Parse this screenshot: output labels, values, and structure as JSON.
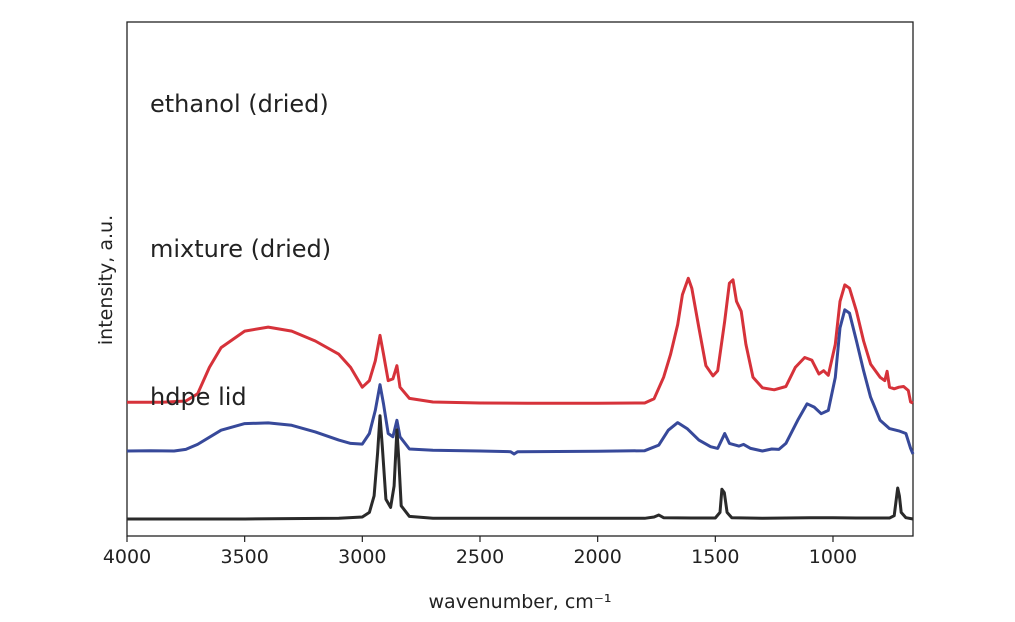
{
  "chart_data": {
    "type": "line",
    "xlabel": "wavenumber, cm⁻¹",
    "ylabel": "intensity, a.u.",
    "xlim": [
      4000,
      660
    ],
    "ylim": [
      0,
      1
    ],
    "xticks": [
      "4000",
      "3500",
      "3000",
      "2500",
      "2000",
      "1500",
      "1000"
    ],
    "grid": false,
    "y_ticks_shown": false,
    "series": [
      {
        "name": "ethanol (dried)",
        "color": "#d6323a",
        "points": [
          [
            4000,
            0.624
          ],
          [
            3850,
            0.624
          ],
          [
            3750,
            0.628
          ],
          [
            3700,
            0.65
          ],
          [
            3650,
            0.73
          ],
          [
            3600,
            0.79
          ],
          [
            3500,
            0.84
          ],
          [
            3400,
            0.852
          ],
          [
            3300,
            0.84
          ],
          [
            3200,
            0.81
          ],
          [
            3100,
            0.77
          ],
          [
            3050,
            0.73
          ],
          [
            3000,
            0.67
          ],
          [
            2970,
            0.69
          ],
          [
            2945,
            0.75
          ],
          [
            2925,
            0.827
          ],
          [
            2910,
            0.77
          ],
          [
            2890,
            0.69
          ],
          [
            2870,
            0.695
          ],
          [
            2853,
            0.735
          ],
          [
            2840,
            0.67
          ],
          [
            2800,
            0.636
          ],
          [
            2700,
            0.625
          ],
          [
            2500,
            0.622
          ],
          [
            2300,
            0.621
          ],
          [
            2000,
            0.621
          ],
          [
            1800,
            0.622
          ],
          [
            1760,
            0.635
          ],
          [
            1720,
            0.7
          ],
          [
            1690,
            0.77
          ],
          [
            1660,
            0.86
          ],
          [
            1640,
            0.95
          ],
          [
            1615,
            1.0
          ],
          [
            1600,
            0.97
          ],
          [
            1570,
            0.85
          ],
          [
            1540,
            0.735
          ],
          [
            1510,
            0.704
          ],
          [
            1490,
            0.72
          ],
          [
            1460,
            0.87
          ],
          [
            1440,
            0.985
          ],
          [
            1425,
            0.995
          ],
          [
            1410,
            0.93
          ],
          [
            1390,
            0.9
          ],
          [
            1370,
            0.8
          ],
          [
            1340,
            0.7
          ],
          [
            1300,
            0.668
          ],
          [
            1250,
            0.662
          ],
          [
            1200,
            0.672
          ],
          [
            1160,
            0.73
          ],
          [
            1120,
            0.76
          ],
          [
            1090,
            0.752
          ],
          [
            1060,
            0.71
          ],
          [
            1040,
            0.72
          ],
          [
            1020,
            0.706
          ],
          [
            990,
            0.8
          ],
          [
            970,
            0.93
          ],
          [
            950,
            0.98
          ],
          [
            930,
            0.97
          ],
          [
            900,
            0.9
          ],
          [
            870,
            0.81
          ],
          [
            840,
            0.74
          ],
          [
            800,
            0.7
          ],
          [
            780,
            0.69
          ],
          [
            770,
            0.718
          ],
          [
            760,
            0.67
          ],
          [
            740,
            0.665
          ],
          [
            720,
            0.67
          ],
          [
            700,
            0.672
          ],
          [
            680,
            0.66
          ],
          [
            670,
            0.625
          ],
          [
            660,
            0.622
          ]
        ]
      },
      {
        "name": "mixture (dried)",
        "color": "#37499a",
        "points": [
          [
            4000,
            0.277
          ],
          [
            3900,
            0.278
          ],
          [
            3800,
            0.277
          ],
          [
            3750,
            0.282
          ],
          [
            3700,
            0.297
          ],
          [
            3600,
            0.34
          ],
          [
            3500,
            0.36
          ],
          [
            3400,
            0.362
          ],
          [
            3300,
            0.355
          ],
          [
            3200,
            0.335
          ],
          [
            3100,
            0.31
          ],
          [
            3050,
            0.3
          ],
          [
            3000,
            0.298
          ],
          [
            2970,
            0.33
          ],
          [
            2945,
            0.4
          ],
          [
            2925,
            0.478
          ],
          [
            2910,
            0.42
          ],
          [
            2890,
            0.33
          ],
          [
            2870,
            0.32
          ],
          [
            2853,
            0.37
          ],
          [
            2840,
            0.32
          ],
          [
            2800,
            0.283
          ],
          [
            2700,
            0.279
          ],
          [
            2500,
            0.277
          ],
          [
            2370,
            0.275
          ],
          [
            2355,
            0.268
          ],
          [
            2340,
            0.275
          ],
          [
            2000,
            0.276
          ],
          [
            1800,
            0.278
          ],
          [
            1740,
            0.295
          ],
          [
            1700,
            0.34
          ],
          [
            1660,
            0.363
          ],
          [
            1620,
            0.345
          ],
          [
            1570,
            0.31
          ],
          [
            1520,
            0.29
          ],
          [
            1490,
            0.285
          ],
          [
            1470,
            0.315
          ],
          [
            1460,
            0.33
          ],
          [
            1440,
            0.3
          ],
          [
            1400,
            0.292
          ],
          [
            1380,
            0.297
          ],
          [
            1350,
            0.285
          ],
          [
            1300,
            0.277
          ],
          [
            1260,
            0.283
          ],
          [
            1230,
            0.282
          ],
          [
            1200,
            0.3
          ],
          [
            1150,
            0.37
          ],
          [
            1110,
            0.42
          ],
          [
            1080,
            0.41
          ],
          [
            1050,
            0.39
          ],
          [
            1020,
            0.4
          ],
          [
            990,
            0.5
          ],
          [
            970,
            0.65
          ],
          [
            950,
            0.705
          ],
          [
            930,
            0.695
          ],
          [
            900,
            0.61
          ],
          [
            870,
            0.52
          ],
          [
            840,
            0.44
          ],
          [
            800,
            0.37
          ],
          [
            760,
            0.345
          ],
          [
            720,
            0.338
          ],
          [
            690,
            0.33
          ],
          [
            670,
            0.285
          ],
          [
            660,
            0.268
          ]
        ]
      },
      {
        "name": "hdpe lid",
        "color": "#2a2a2a",
        "points": [
          [
            4000,
            0.0
          ],
          [
            3500,
            0.0
          ],
          [
            3100,
            0.002
          ],
          [
            3000,
            0.006
          ],
          [
            2970,
            0.02
          ],
          [
            2950,
            0.07
          ],
          [
            2935,
            0.2
          ],
          [
            2925,
            0.313
          ],
          [
            2915,
            0.22
          ],
          [
            2900,
            0.06
          ],
          [
            2880,
            0.035
          ],
          [
            2865,
            0.1
          ],
          [
            2853,
            0.27
          ],
          [
            2845,
            0.18
          ],
          [
            2835,
            0.04
          ],
          [
            2800,
            0.008
          ],
          [
            2700,
            0.002
          ],
          [
            2000,
            0.002
          ],
          [
            1800,
            0.002
          ],
          [
            1760,
            0.006
          ],
          [
            1740,
            0.012
          ],
          [
            1720,
            0.004
          ],
          [
            1600,
            0.003
          ],
          [
            1500,
            0.003
          ],
          [
            1480,
            0.02
          ],
          [
            1472,
            0.09
          ],
          [
            1462,
            0.08
          ],
          [
            1450,
            0.02
          ],
          [
            1430,
            0.004
          ],
          [
            1300,
            0.002
          ],
          [
            1100,
            0.004
          ],
          [
            1000,
            0.004
          ],
          [
            900,
            0.003
          ],
          [
            760,
            0.003
          ],
          [
            740,
            0.01
          ],
          [
            725,
            0.094
          ],
          [
            718,
            0.07
          ],
          [
            710,
            0.02
          ],
          [
            690,
            0.004
          ],
          [
            660,
            0.0
          ]
        ]
      }
    ]
  }
}
